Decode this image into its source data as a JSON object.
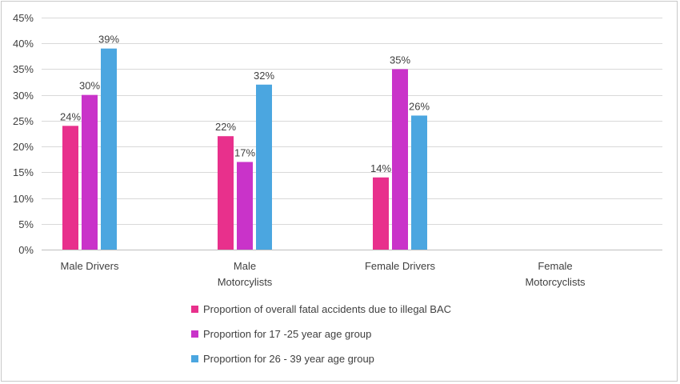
{
  "chart_data": {
    "type": "bar",
    "title": "",
    "xlabel": "",
    "ylabel": "",
    "ylim": [
      0,
      45
    ],
    "ytick_step": 5,
    "ytick_suffix": "%",
    "grid": true,
    "legend_position": "bottom",
    "categories": [
      [
        "Male Drivers"
      ],
      [
        "Male",
        "Motorcylists"
      ],
      [
        "Female Drivers"
      ],
      [
        "Female",
        "Motorcyclists"
      ]
    ],
    "series": [
      {
        "name": "Proportion of overall fatal accidents due to illegal BAC",
        "color": "#e8308c",
        "values": [
          24,
          22,
          14,
          null
        ]
      },
      {
        "name": "Proportion for 17 -25 year age group",
        "color": "#c933c9",
        "values": [
          30,
          17,
          35,
          null
        ]
      },
      {
        "name": "Proportion for 26 - 39 year age group",
        "color": "#4ba6e0",
        "values": [
          39,
          32,
          26,
          null
        ]
      }
    ],
    "value_suffix": "%"
  }
}
